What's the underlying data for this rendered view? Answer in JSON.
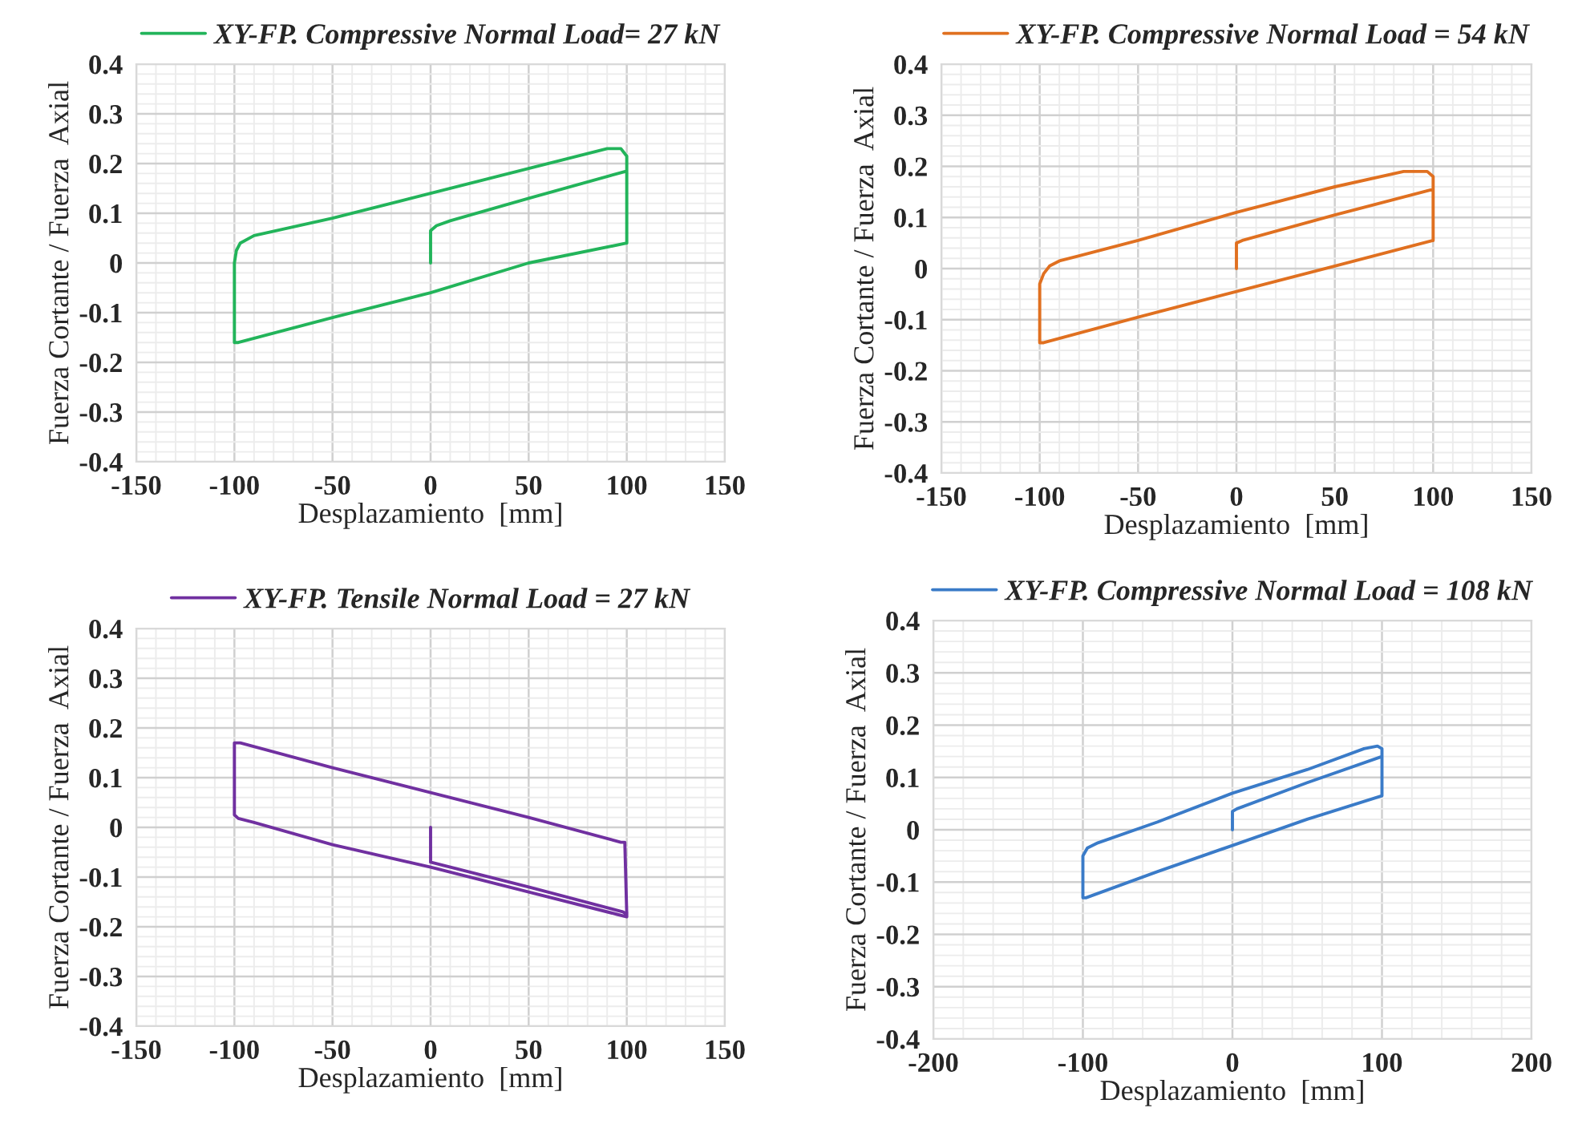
{
  "chart_data": [
    {
      "type": "line",
      "xlabel": "Desplazamiento  [mm]",
      "ylabel": "Fuerza Cortante / Fuerza  Axial",
      "xlim": [
        -150,
        150
      ],
      "ylim": [
        -0.4,
        0.4
      ],
      "xticks": [
        -150,
        -100,
        -50,
        0,
        50,
        100,
        150
      ],
      "yticks": [
        -0.4,
        -0.3,
        -0.2,
        -0.1,
        0,
        0.1,
        0.2,
        0.3,
        0.4
      ],
      "grid": true,
      "legend": "top",
      "marker": "none",
      "line_style": "solid",
      "series": [
        {
          "name": "XY-FP. Compressive Normal Load= 27 kN",
          "color": "#22b45a",
          "x": [
            0,
            0,
            3,
            10,
            50,
            100,
            100,
            50,
            0,
            -50,
            -98,
            -100,
            -100,
            -99,
            -97,
            -90,
            -50,
            0,
            50,
            90,
            97,
            100,
            100
          ],
          "values": [
            0,
            0.065,
            0.075,
            0.085,
            0.13,
            0.185,
            0.04,
            0.0,
            -0.06,
            -0.11,
            -0.16,
            -0.16,
            0.0,
            0.025,
            0.04,
            0.055,
            0.09,
            0.14,
            0.19,
            0.23,
            0.23,
            0.215,
            0.04
          ]
        }
      ]
    },
    {
      "type": "line",
      "xlabel": "Desplazamiento  [mm]",
      "ylabel": "Fuerza Cortante / Fuerza  Axial",
      "xlim": [
        -150,
        150
      ],
      "ylim": [
        -0.4,
        0.4
      ],
      "xticks": [
        -150,
        -100,
        -50,
        0,
        50,
        100,
        150
      ],
      "yticks": [
        -0.4,
        -0.3,
        -0.2,
        -0.1,
        0,
        0.1,
        0.2,
        0.3,
        0.4
      ],
      "grid": true,
      "legend": "top",
      "marker": "none",
      "line_style": "solid",
      "series": [
        {
          "name": "XY-FP. Compressive Normal Load = 54 kN",
          "color": "#e07020",
          "x": [
            0,
            0,
            3,
            50,
            100,
            100,
            50,
            0,
            -50,
            -98,
            -100,
            -100,
            -98,
            -95,
            -90,
            -80,
            -50,
            0,
            50,
            85,
            97,
            100,
            100
          ],
          "values": [
            0,
            0.05,
            0.055,
            0.105,
            0.155,
            0.055,
            0.005,
            -0.045,
            -0.095,
            -0.145,
            -0.145,
            -0.03,
            -0.01,
            0.005,
            0.015,
            0.025,
            0.055,
            0.11,
            0.16,
            0.19,
            0.19,
            0.18,
            0.055
          ]
        }
      ]
    },
    {
      "type": "line",
      "xlabel": "Desplazamiento  [mm]",
      "ylabel": "Fuerza Cortante / Fuerza  Axial",
      "xlim": [
        -150,
        150
      ],
      "ylim": [
        -0.4,
        0.4
      ],
      "xticks": [
        -150,
        -100,
        -50,
        0,
        50,
        100,
        150
      ],
      "yticks": [
        -0.4,
        -0.3,
        -0.2,
        -0.1,
        0,
        0.1,
        0.2,
        0.3,
        0.4
      ],
      "grid": true,
      "legend": "top",
      "marker": "none",
      "line_style": "solid",
      "series": [
        {
          "name": "XY-FP. Tensile Normal Load = 27 kN",
          "color": "#7030a0",
          "x": [
            0,
            0,
            50,
            98,
            100,
            99,
            97,
            50,
            0,
            -50,
            -97,
            -100,
            -100,
            -98,
            -90,
            -50,
            0,
            50,
            95,
            100,
            100
          ],
          "values": [
            0,
            -0.07,
            -0.12,
            -0.17,
            -0.175,
            -0.03,
            -0.03,
            0.02,
            0.07,
            0.12,
            0.17,
            0.17,
            0.025,
            0.018,
            0.01,
            -0.035,
            -0.08,
            -0.13,
            -0.175,
            -0.18,
            -0.17
          ]
        }
      ]
    },
    {
      "type": "line",
      "xlabel": "Desplazamiento  [mm]",
      "ylabel": "Fuerza Cortante / Fuerza  Axial",
      "xlim": [
        -200,
        200
      ],
      "ylim": [
        -0.4,
        0.4
      ],
      "xticks": [
        -200,
        -100,
        0,
        100,
        200
      ],
      "yticks": [
        -0.4,
        -0.3,
        -0.2,
        -0.1,
        0,
        0.1,
        0.2,
        0.3,
        0.4
      ],
      "grid": true,
      "legend": "top",
      "marker": "none",
      "line_style": "solid",
      "series": [
        {
          "name": "XY-FP. Compressive Normal Load = 108 kN",
          "color": "#3a7bc8",
          "x": [
            0,
            0,
            3,
            50,
            100,
            100,
            50,
            0,
            -50,
            -98,
            -100,
            -100,
            -97,
            -90,
            -50,
            0,
            50,
            88,
            97,
            100,
            100
          ],
          "values": [
            0,
            0.035,
            0.04,
            0.09,
            0.14,
            0.065,
            0.02,
            -0.03,
            -0.08,
            -0.13,
            -0.13,
            -0.05,
            -0.035,
            -0.025,
            0.015,
            0.07,
            0.115,
            0.155,
            0.16,
            0.155,
            0.065
          ]
        }
      ]
    }
  ]
}
